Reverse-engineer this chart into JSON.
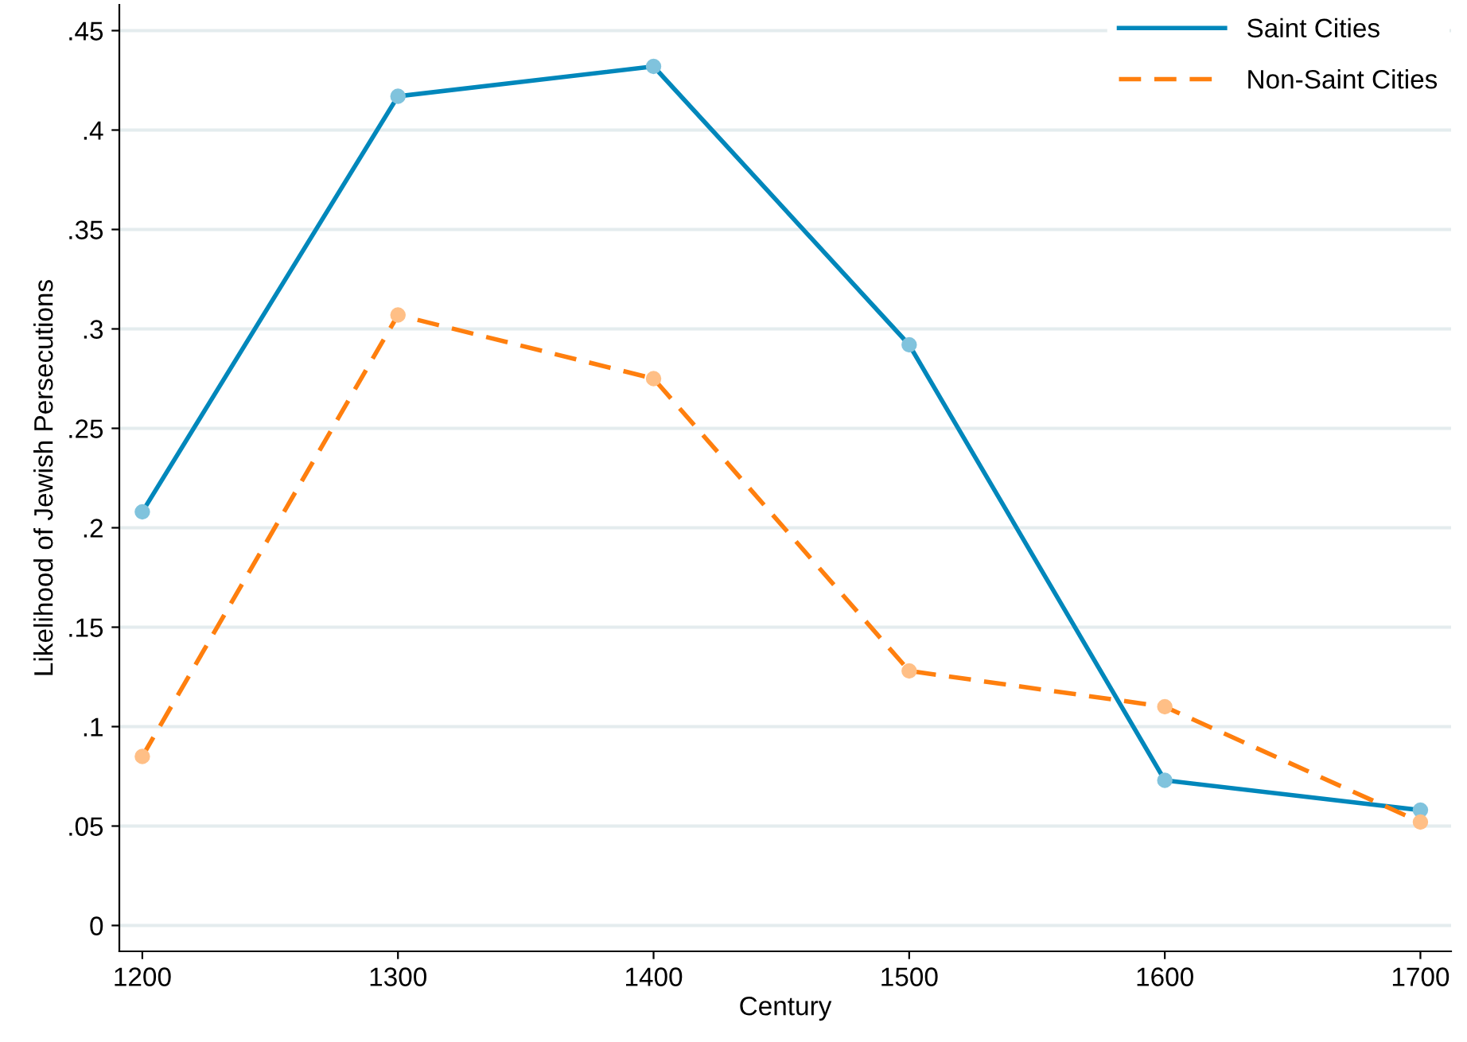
{
  "chart_data": {
    "type": "line",
    "xlabel": "Century",
    "ylabel": "Likelihood of Jewish Persecutions",
    "x": [
      1200,
      1300,
      1400,
      1500,
      1600,
      1700
    ],
    "series": [
      {
        "name": "Saint Cities",
        "color": "#0087bb",
        "values": [
          0.208,
          0.417,
          0.432,
          0.292,
          0.073,
          0.058
        ],
        "line_style": "solid"
      },
      {
        "name": "Non-Saint Cities",
        "color": "#ff7f0e",
        "values": [
          0.085,
          0.307,
          0.275,
          0.128,
          0.11,
          0.052
        ],
        "line_style": "dashed"
      }
    ],
    "marker": "circle",
    "xlim": [
      1191,
      1712
    ],
    "xticks": [
      1200,
      1300,
      1400,
      1500,
      1600,
      1700
    ],
    "ylim": [
      -0.013,
      0.463
    ],
    "yticks": [
      {
        "value": 0,
        "label": "0"
      },
      {
        "value": 0.05,
        "label": ".05"
      },
      {
        "value": 0.1,
        "label": ".1"
      },
      {
        "value": 0.15,
        "label": ".15"
      },
      {
        "value": 0.2,
        "label": ".2"
      },
      {
        "value": 0.25,
        "label": ".25"
      },
      {
        "value": 0.3,
        "label": ".3"
      },
      {
        "value": 0.35,
        "label": ".35"
      },
      {
        "value": 0.4,
        "label": ".4"
      },
      {
        "value": 0.45,
        "label": ".45"
      }
    ],
    "grid": "y",
    "legend": "top right"
  }
}
